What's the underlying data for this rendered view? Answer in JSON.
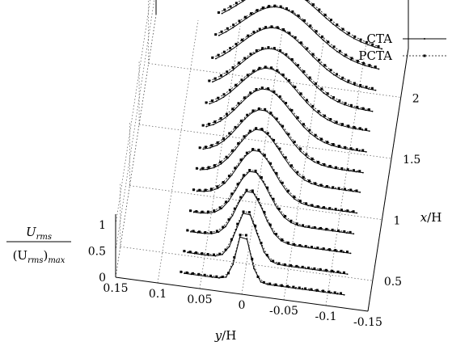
{
  "chart_data": {
    "type": "line",
    "projection": "3d-waterfall",
    "title": "",
    "xlabel": "y/H",
    "ylabel": "x/H",
    "zlabel": "U_rms / (U_rms)_max",
    "x_axis_ticks": [
      "0.15",
      "0.1",
      "0.05",
      "0",
      "-0.05",
      "-0.1",
      "-0.15"
    ],
    "x_axis_tick_values": [
      0.15,
      0.1,
      0.05,
      0,
      -0.05,
      -0.1,
      -0.15
    ],
    "y_axis_ticks": [
      "0.5",
      "1",
      "1.5",
      "2"
    ],
    "y_axis_tick_values": [
      0.5,
      1,
      1.5,
      2
    ],
    "z_axis_ticks": [
      "0",
      "0.5",
      "1"
    ],
    "z_axis_tick_values": [
      0,
      0.5,
      1
    ],
    "xlim": [
      0.15,
      -0.15
    ],
    "ylim": [
      0.25,
      2.4
    ],
    "zlim": [
      0,
      1.2
    ],
    "grid": true,
    "legend_placement": "top-right",
    "legend": [
      {
        "label": "CTA",
        "style": "solid",
        "marker": "small-dot"
      },
      {
        "label": "PCTA",
        "style": "dashed",
        "marker": "square"
      }
    ],
    "stations_x_over_H": [
      0.33,
      0.5,
      0.67,
      0.83,
      1.0,
      1.17,
      1.33,
      1.5,
      1.67,
      1.83,
      2.0,
      2.17,
      2.33
    ],
    "profile_widths_y_over_H": [
      0.008,
      0.012,
      0.016,
      0.019,
      0.022,
      0.025,
      0.028,
      0.031,
      0.034,
      0.037,
      0.04,
      0.043,
      0.046
    ],
    "y_range_measured": [
      0.07,
      -0.12
    ],
    "series": [
      {
        "name": "CTA",
        "peak_value": 1.0
      },
      {
        "name": "PCTA",
        "peak_value": 1.0
      }
    ]
  },
  "axes": {
    "x_label_prefix": "y",
    "x_label_suffix": "/H",
    "y_label_prefix": "x",
    "y_label_suffix": "/H",
    "z_label_num": "U",
    "z_label_num_sub": "rms",
    "z_label_den_open": "(U",
    "z_label_den_sub": "rms",
    "z_label_den_close": ")",
    "z_label_den_sub2": "max"
  },
  "colors": {
    "ink": "#000000",
    "grid": "#555555",
    "background": "#ffffff"
  }
}
